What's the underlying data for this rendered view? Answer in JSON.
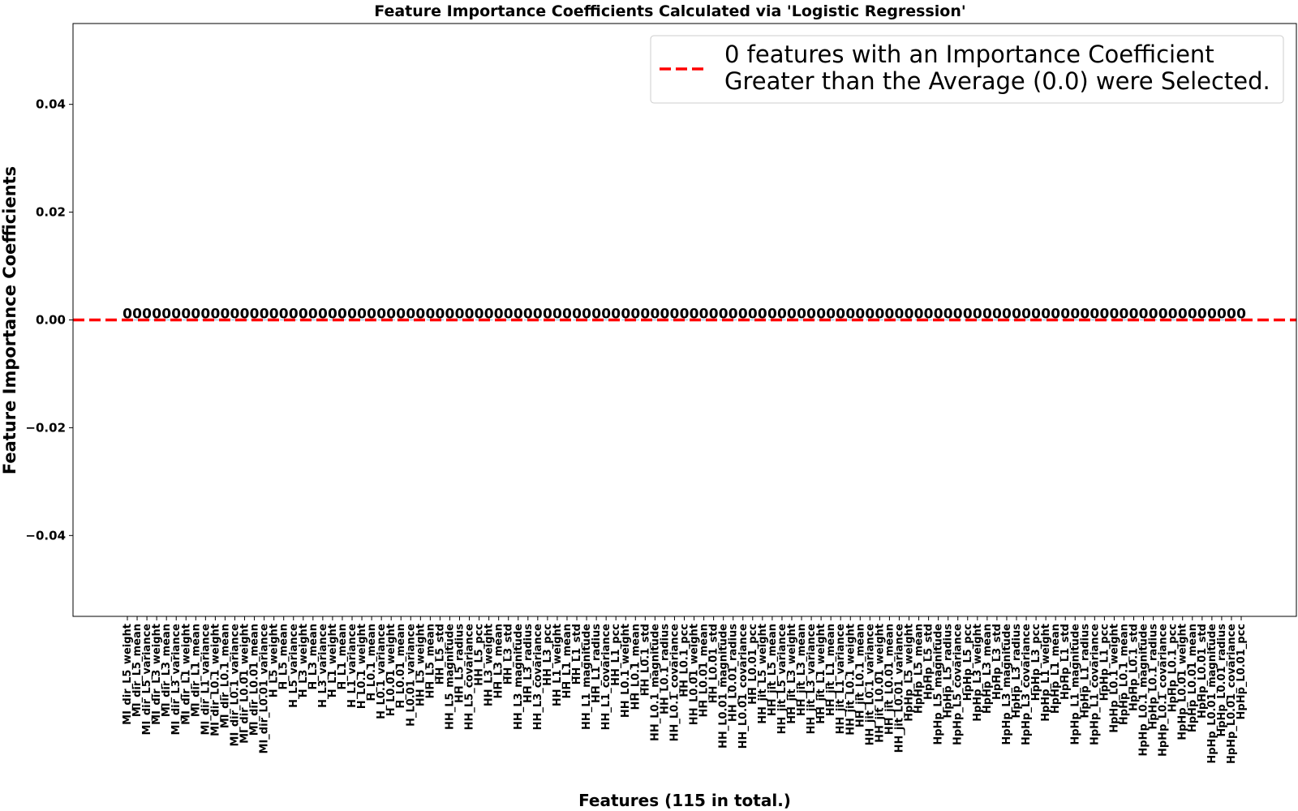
{
  "chart_data": {
    "type": "bar",
    "title": "Feature Importance Coefficients Calculated via 'Logistic Regression'",
    "xlabel": "Features (115 in total.)",
    "ylabel": "Feature Importance Coefficients",
    "ylim": [
      -0.055,
      0.055
    ],
    "yticks": [
      -0.04,
      -0.02,
      0.0,
      0.02,
      0.04
    ],
    "ytick_labels": [
      "−0.04",
      "−0.02",
      "0.00",
      "0.02",
      "0.04"
    ],
    "grid": false,
    "categories": [
      "MI_dir_L5_weight",
      "MI_dir_L5_mean",
      "MI_dir_L5_variance",
      "MI_dir_L3_weight",
      "MI_dir_L3_mean",
      "MI_dir_L3_variance",
      "MI_dir_L1_weight",
      "MI_dir_L1_mean",
      "MI_dir_L1_variance",
      "MI_dir_L0.1_weight",
      "MI_dir_L0.1_mean",
      "MI_dir_L0.1_variance",
      "MI_dir_L0.01_weight",
      "MI_dir_L0.01_mean",
      "MI_dir_L0.01_variance",
      "H_L5_weight",
      "H_L5_mean",
      "H_L5_variance",
      "H_L3_weight",
      "H_L3_mean",
      "H_L3_variance",
      "H_L1_weight",
      "H_L1_mean",
      "H_L1_variance",
      "H_L0.1_weight",
      "H_L0.1_mean",
      "H_L0.1_variance",
      "H_L0.01_weight",
      "H_L0.01_mean",
      "H_L0.01_variance",
      "HH_L5_weight",
      "HH_L5_mean",
      "HH_L5_std",
      "HH_L5_magnitude",
      "HH_L5_radius",
      "HH_L5_covariance",
      "HH_L5_pcc",
      "HH_L3_weight",
      "HH_L3_mean",
      "HH_L3_std",
      "HH_L3_magnitude",
      "HH_L3_radius",
      "HH_L3_covariance",
      "HH_L3_pcc",
      "HH_L1_weight",
      "HH_L1_mean",
      "HH_L1_std",
      "HH_L1_magnitude",
      "HH_L1_radius",
      "HH_L1_covariance",
      "HH_L1_pcc",
      "HH_L0.1_weight",
      "HH_L0.1_mean",
      "HH_L0.1_std",
      "HH_L0.1_magnitude",
      "HH_L0.1_radius",
      "HH_L0.1_covariance",
      "HH_L0.1_pcc",
      "HH_L0.01_weight",
      "HH_L0.01_mean",
      "HH_L0.01_std",
      "HH_L0.01_magnitude",
      "HH_L0.01_radius",
      "HH_L0.01_covariance",
      "HH_L0.01_pcc",
      "HH_jit_L5_weight",
      "HH_jit_L5_mean",
      "HH_jit_L5_variance",
      "HH_jit_L3_weight",
      "HH_jit_L3_mean",
      "HH_jit_L3_variance",
      "HH_jit_L1_weight",
      "HH_jit_L1_mean",
      "HH_jit_L1_variance",
      "HH_jit_L0.1_weight",
      "HH_jit_L0.1_mean",
      "HH_jit_L0.1_variance",
      "HH_jit_L0.01_weight",
      "HH_jit_L0.01_mean",
      "HH_jit_L0.01_variance",
      "HpHp_L5_weight",
      "HpHp_L5_mean",
      "HpHp_L5_std",
      "HpHp_L5_magnitude",
      "HpHp_L5_radius",
      "HpHp_L5_covariance",
      "HpHp_L5_pcc",
      "HpHp_L3_weight",
      "HpHp_L3_mean",
      "HpHp_L3_std",
      "HpHp_L3_magnitude",
      "HpHp_L3_radius",
      "HpHp_L3_covariance",
      "HpHp_L3_pcc",
      "HpHp_L1_weight",
      "HpHp_L1_mean",
      "HpHp_L1_std",
      "HpHp_L1_magnitude",
      "HpHp_L1_radius",
      "HpHp_L1_covariance",
      "HpHp_L1_pcc",
      "HpHp_L0.1_weight",
      "HpHp_L0.1_mean",
      "HpHp_L0.1_std",
      "HpHp_L0.1_magnitude",
      "HpHp_L0.1_radius",
      "HpHp_L0.1_covariance",
      "HpHp_L0.1_pcc",
      "HpHp_L0.01_weight",
      "HpHp_L0.01_mean",
      "HpHp_L0.01_std",
      "HpHp_L0.01_magnitude",
      "HpHp_L0.01_radius",
      "HpHp_L0.01_covariance",
      "HpHp_L0.01_pcc"
    ],
    "values": [
      0,
      0,
      0,
      0,
      0,
      0,
      0,
      0,
      0,
      0,
      0,
      0,
      0,
      0,
      0,
      0,
      0,
      0,
      0,
      0,
      0,
      0,
      0,
      0,
      0,
      0,
      0,
      0,
      0,
      0,
      0,
      0,
      0,
      0,
      0,
      0,
      0,
      0,
      0,
      0,
      0,
      0,
      0,
      0,
      0,
      0,
      0,
      0,
      0,
      0,
      0,
      0,
      0,
      0,
      0,
      0,
      0,
      0,
      0,
      0,
      0,
      0,
      0,
      0,
      0,
      0,
      0,
      0,
      0,
      0,
      0,
      0,
      0,
      0,
      0,
      0,
      0,
      0,
      0,
      0,
      0,
      0,
      0,
      0,
      0,
      0,
      0,
      0,
      0,
      0,
      0,
      0,
      0,
      0,
      0,
      0,
      0,
      0,
      0,
      0,
      0,
      0,
      0,
      0,
      0,
      0,
      0,
      0,
      0,
      0,
      0,
      0,
      0,
      0,
      0
    ],
    "data_labels": [
      "0",
      "0",
      "0",
      "0",
      "0",
      "0",
      "0",
      "0",
      "0",
      "0",
      "0",
      "0",
      "0",
      "0",
      "0",
      "0",
      "0",
      "0",
      "0",
      "0",
      "0",
      "0",
      "0",
      "0",
      "0",
      "0",
      "0",
      "0",
      "0",
      "0",
      "0",
      "0",
      "0",
      "0",
      "0",
      "0",
      "0",
      "0",
      "0",
      "0",
      "0",
      "0",
      "0",
      "0",
      "0",
      "0",
      "0",
      "0",
      "0",
      "0",
      "0",
      "0",
      "0",
      "0",
      "0",
      "0",
      "0",
      "0",
      "0",
      "0",
      "0",
      "0",
      "0",
      "0",
      "0",
      "0",
      "0",
      "0",
      "0",
      "0",
      "0",
      "0",
      "0",
      "0",
      "0",
      "0",
      "0",
      "0",
      "0",
      "0",
      "0",
      "0",
      "0",
      "0",
      "0",
      "0",
      "0",
      "0",
      "0",
      "0",
      "0",
      "0",
      "0",
      "0",
      "0",
      "0",
      "0",
      "0",
      "0",
      "0",
      "0",
      "0",
      "0",
      "0",
      "0",
      "0",
      "0",
      "0",
      "0",
      "0",
      "0",
      "0",
      "0",
      "0",
      "0"
    ],
    "average_line": {
      "value": 0.0,
      "color": "#ff0000",
      "style": "dashed"
    },
    "legend": {
      "placement": "top-right",
      "lines": [
        "0 features with an Importance Coefficient",
        "Greater than the Average (0.0) were Selected."
      ]
    }
  }
}
